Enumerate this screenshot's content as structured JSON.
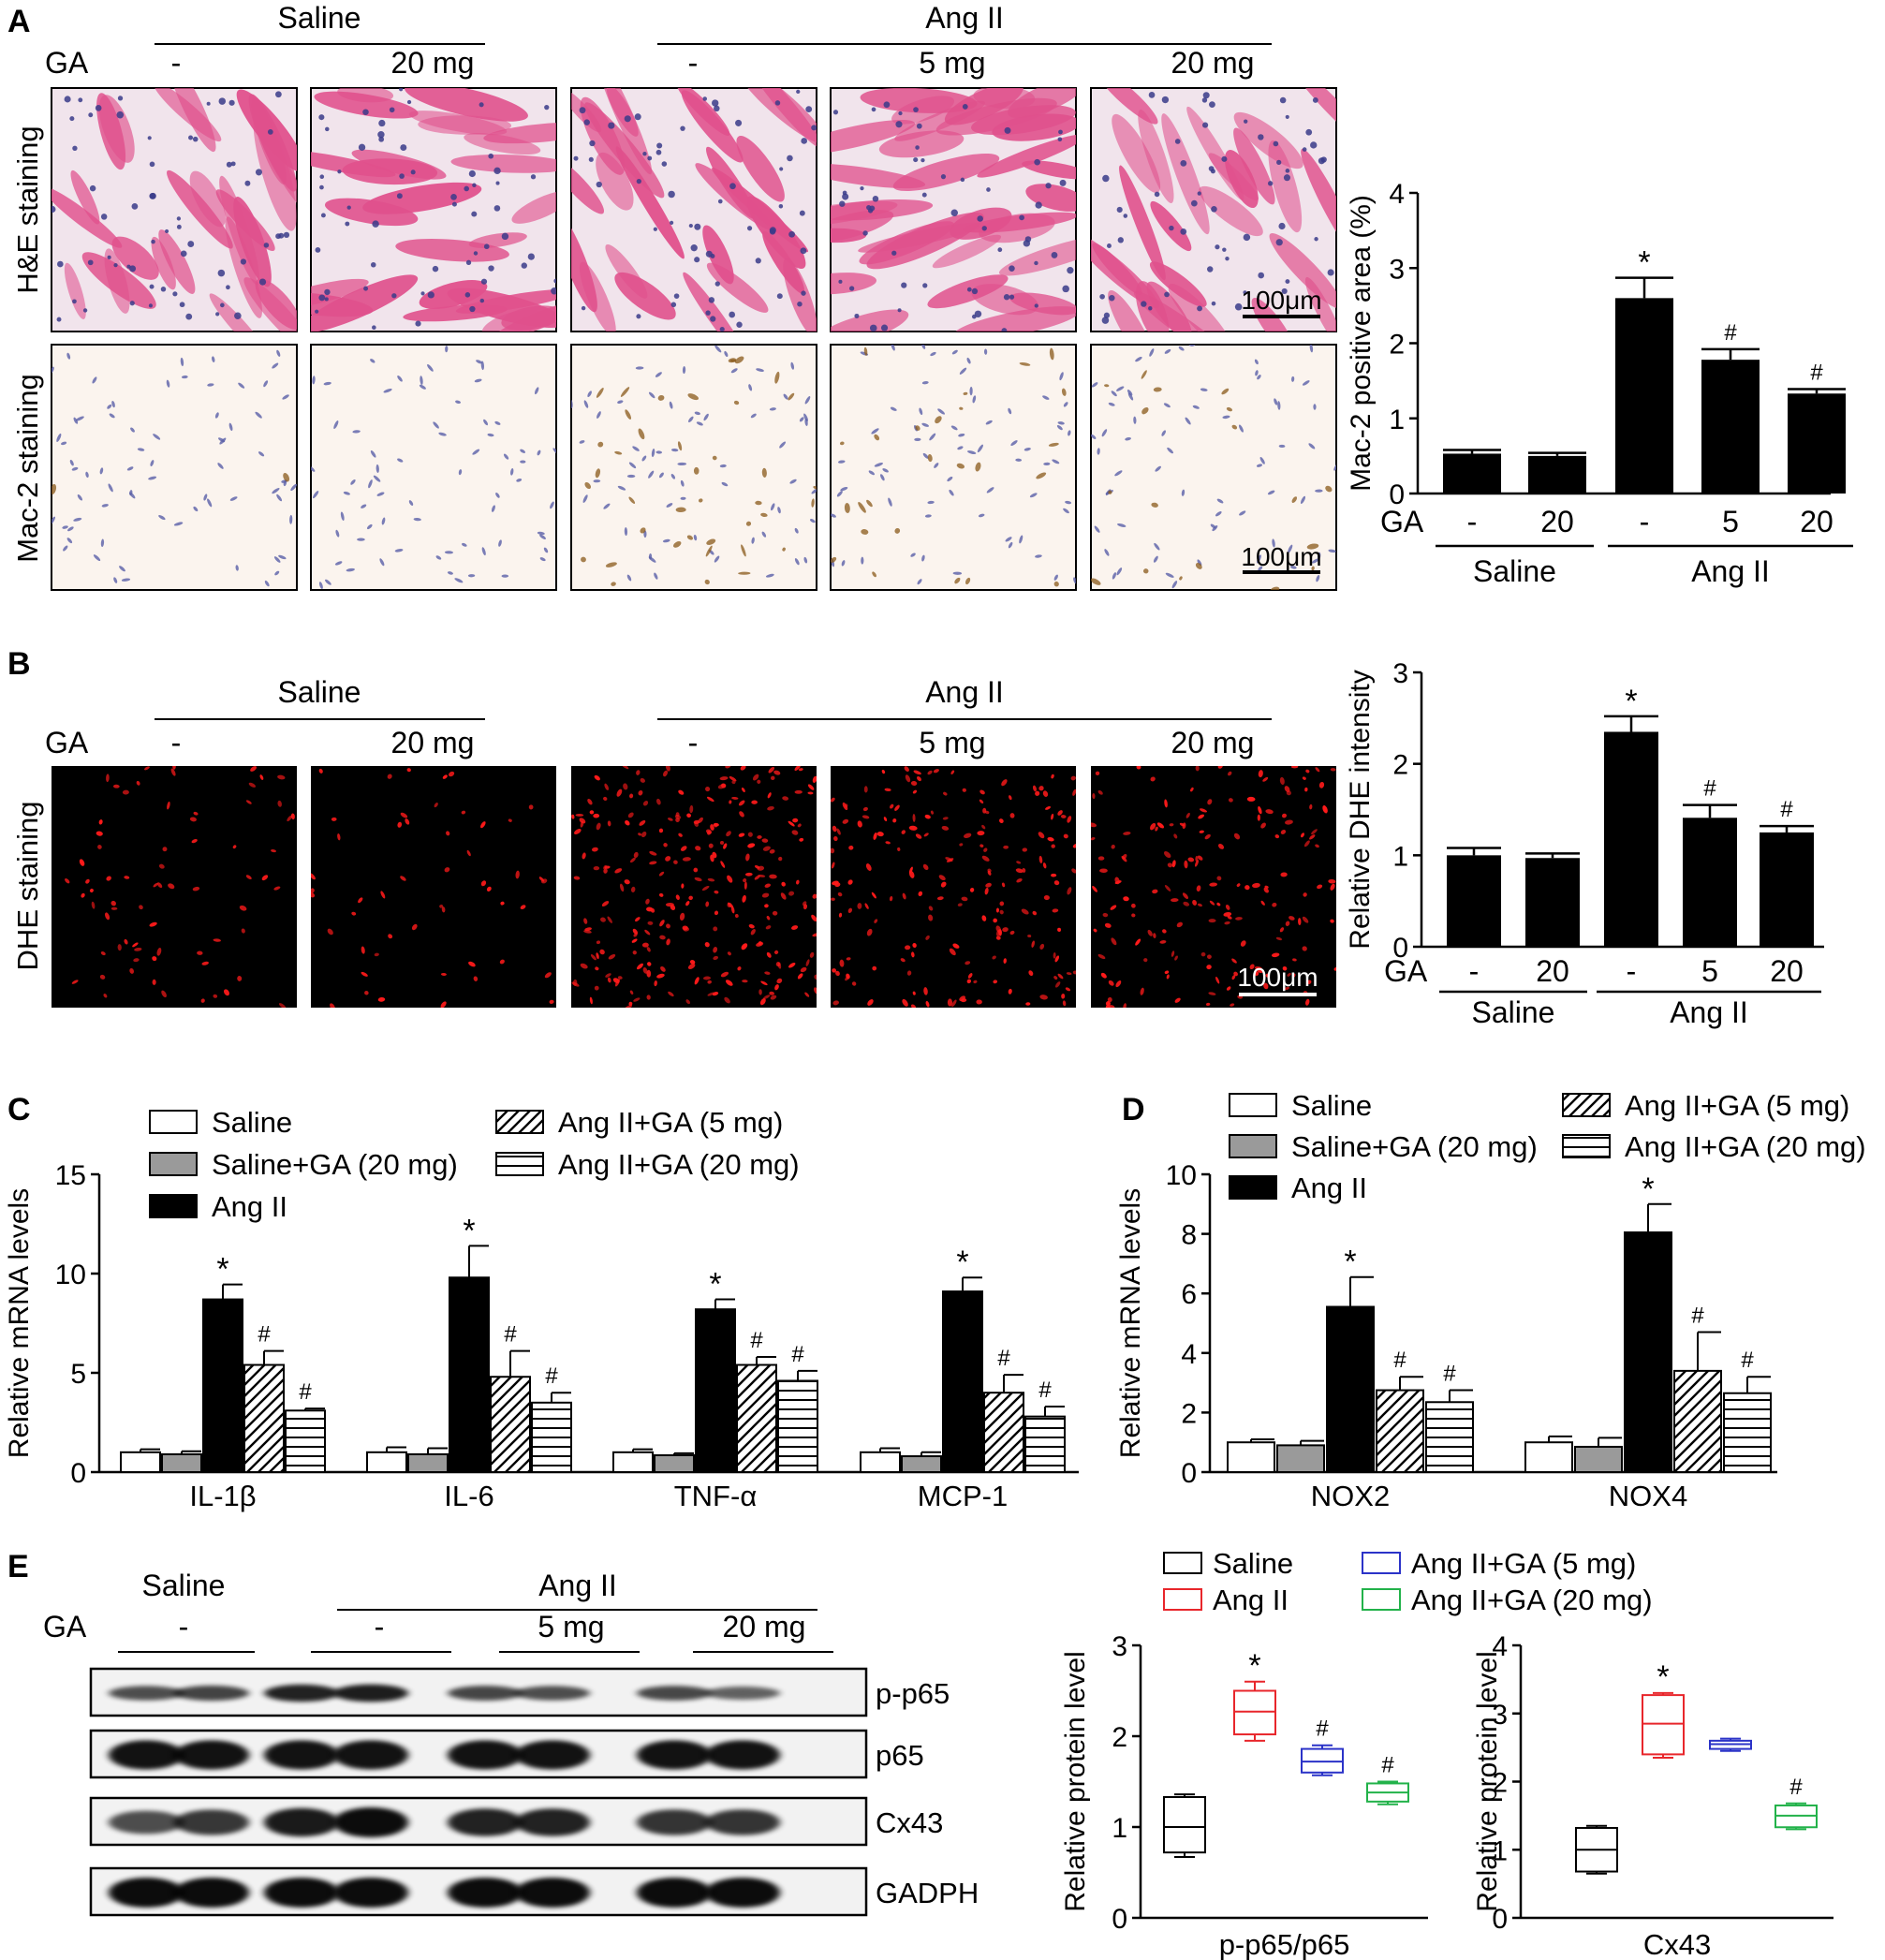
{
  "panel_labels": [
    "A",
    "B",
    "C",
    "D",
    "E"
  ],
  "groups": {
    "saline": "Saline",
    "angii": "Ang II",
    "ga": "GA"
  },
  "doses_micrograph": [
    "-",
    "20 mg",
    "-",
    "5 mg",
    "20 mg"
  ],
  "doses_bar": [
    "-",
    "20",
    "-",
    "5",
    "20"
  ],
  "scale_bar": "100μm",
  "panel_a": {
    "row_labels": [
      "H&E staining",
      "Mac-2 staining"
    ],
    "he_colors": {
      "background": "#f1e4ec",
      "muscle": "#e0508c",
      "nuclei": "#3a3b8a"
    },
    "mac_colors": {
      "background": "#fbf4ee",
      "nuclei": "#5a5fa8",
      "stain": "#8a5a1a"
    }
  },
  "panel_b": {
    "row_label": "DHE staining",
    "dhe_colors": {
      "background": "#000000",
      "signal": "#ff1a1a"
    }
  },
  "panel_c": {
    "legend": [
      "Saline",
      "Saline+GA (20 mg)",
      "Ang II",
      "Ang II+GA (5 mg)",
      "Ang II+GA (20 mg)"
    ]
  },
  "panel_e": {
    "header_doses": [
      "-",
      "-",
      "5 mg",
      "20 mg"
    ],
    "blot_labels": [
      "p-p65",
      "p65",
      "Cx43",
      "GADPH"
    ],
    "legend": [
      "Saline",
      "Ang II",
      "Ang II+GA (5 mg)",
      "Ang II+GA (20 mg)"
    ],
    "box_colors": [
      "#000000",
      "#e8262b",
      "#2b33c8",
      "#22b24a"
    ],
    "blot_intensity": {
      "p-p65": [
        0.55,
        0.62,
        0.85,
        0.88,
        0.6,
        0.55,
        0.58,
        0.42
      ],
      "p65": [
        0.95,
        0.95,
        0.95,
        0.95,
        0.95,
        0.95,
        0.95,
        0.95
      ],
      "Cx43": [
        0.55,
        0.7,
        0.9,
        1.0,
        0.85,
        0.85,
        0.72,
        0.72
      ],
      "GADPH": [
        1.0,
        1.0,
        1.0,
        1.0,
        1.0,
        1.0,
        1.0,
        1.0
      ]
    }
  },
  "chart_data": [
    {
      "id": "mac2",
      "type": "bar",
      "ylabel": "Mac-2 positive area (%)",
      "ylim": [
        0,
        4
      ],
      "yticks": [
        0,
        1,
        2,
        3,
        4
      ],
      "categories": [
        "-",
        "20",
        "-",
        "5",
        "20"
      ],
      "values": [
        0.53,
        0.5,
        2.6,
        1.78,
        1.33
      ],
      "errors": [
        0.05,
        0.04,
        0.27,
        0.14,
        0.06
      ],
      "marks": [
        "",
        "",
        "*",
        "#",
        "#"
      ],
      "groups": [
        {
          "label": "Saline",
          "from": 0,
          "to": 1
        },
        {
          "label": "Ang II",
          "from": 2,
          "to": 4
        }
      ],
      "row_label": "GA"
    },
    {
      "id": "dhe",
      "type": "bar",
      "ylabel": "Relative DHE intensity",
      "ylim": [
        0,
        3
      ],
      "yticks": [
        0,
        1,
        2,
        3
      ],
      "categories": [
        "-",
        "20",
        "-",
        "5",
        "20"
      ],
      "values": [
        1.0,
        0.97,
        2.35,
        1.41,
        1.25
      ],
      "errors": [
        0.08,
        0.05,
        0.17,
        0.14,
        0.07
      ],
      "marks": [
        "",
        "",
        "*",
        "#",
        "#"
      ],
      "groups": [
        {
          "label": "Saline",
          "from": 0,
          "to": 1
        },
        {
          "label": "Ang II",
          "from": 2,
          "to": 4
        }
      ],
      "row_label": "GA"
    },
    {
      "id": "cytokines",
      "type": "bar",
      "ylabel": "Relative mRNA levels",
      "ylim": [
        0,
        15
      ],
      "yticks": [
        0,
        5,
        10,
        15
      ],
      "categories": [
        "IL-1β",
        "IL-6",
        "TNF-α",
        "MCP-1"
      ],
      "series": [
        {
          "name": "Saline",
          "values": [
            1.0,
            1.0,
            1.0,
            1.0
          ],
          "errors": [
            0.15,
            0.25,
            0.15,
            0.2
          ],
          "marks": [
            "",
            "",
            "",
            ""
          ]
        },
        {
          "name": "Saline+GA (20 mg)",
          "values": [
            0.9,
            0.9,
            0.85,
            0.8
          ],
          "errors": [
            0.15,
            0.3,
            0.1,
            0.2
          ],
          "marks": [
            "",
            "",
            "",
            ""
          ]
        },
        {
          "name": "Ang II",
          "values": [
            8.7,
            9.8,
            8.2,
            9.1
          ],
          "errors": [
            0.75,
            1.6,
            0.5,
            0.7
          ],
          "marks": [
            "*",
            "*",
            "*",
            "*"
          ]
        },
        {
          "name": "Ang II+GA (5 mg)",
          "values": [
            5.4,
            4.8,
            5.4,
            4.0
          ],
          "errors": [
            0.7,
            1.3,
            0.4,
            0.9
          ],
          "marks": [
            "#",
            "#",
            "#",
            "#"
          ]
        },
        {
          "name": "Ang II+GA (20 mg)",
          "values": [
            3.1,
            3.5,
            4.6,
            2.8
          ],
          "errors": [
            0.1,
            0.5,
            0.5,
            0.5
          ],
          "marks": [
            "#",
            "#",
            "#",
            "#"
          ]
        }
      ]
    },
    {
      "id": "nox",
      "type": "bar",
      "ylabel": "Relative mRNA levels",
      "ylim": [
        0,
        10
      ],
      "yticks": [
        0,
        2,
        4,
        6,
        8,
        10
      ],
      "categories": [
        "NOX2",
        "NOX4"
      ],
      "series": [
        {
          "name": "Saline",
          "values": [
            1.0,
            1.0
          ],
          "errors": [
            0.1,
            0.2
          ],
          "marks": [
            "",
            ""
          ]
        },
        {
          "name": "Saline+GA (20 mg)",
          "values": [
            0.9,
            0.85
          ],
          "errors": [
            0.15,
            0.3
          ],
          "marks": [
            "",
            ""
          ]
        },
        {
          "name": "Ang II",
          "values": [
            5.55,
            8.05
          ],
          "errors": [
            1.0,
            0.95
          ],
          "marks": [
            "*",
            "*"
          ]
        },
        {
          "name": "Ang II+GA (5 mg)",
          "values": [
            2.75,
            3.4
          ],
          "errors": [
            0.45,
            1.3
          ],
          "marks": [
            "#",
            "#"
          ]
        },
        {
          "name": "Ang II+GA (20 mg)",
          "values": [
            2.35,
            2.65
          ],
          "errors": [
            0.4,
            0.55
          ],
          "marks": [
            "#",
            "#"
          ]
        }
      ]
    },
    {
      "id": "pp65",
      "type": "box",
      "xlabel": "p-p65/p65",
      "ylabel": "Relative protein level",
      "ylim": [
        0,
        3
      ],
      "yticks": [
        0,
        1,
        2,
        3
      ],
      "boxes": [
        {
          "name": "Saline",
          "min": 0.67,
          "q1": 0.72,
          "median": 1.0,
          "q3": 1.33,
          "max": 1.36,
          "mark": ""
        },
        {
          "name": "Ang II",
          "min": 1.95,
          "q1": 2.02,
          "median": 2.27,
          "q3": 2.5,
          "max": 2.6,
          "mark": "*"
        },
        {
          "name": "Ang II+GA (5 mg)",
          "min": 1.57,
          "q1": 1.6,
          "median": 1.72,
          "q3": 1.86,
          "max": 1.9,
          "mark": "#"
        },
        {
          "name": "Ang II+GA (20 mg)",
          "min": 1.25,
          "q1": 1.28,
          "median": 1.38,
          "q3": 1.48,
          "max": 1.5,
          "mark": "#"
        }
      ]
    },
    {
      "id": "cx43",
      "type": "box",
      "xlabel": "Cx43",
      "ylabel": "Relative protein level",
      "ylim": [
        0,
        4
      ],
      "yticks": [
        0,
        1,
        2,
        3,
        4
      ],
      "boxes": [
        {
          "name": "Saline",
          "min": 0.65,
          "q1": 0.68,
          "median": 1.0,
          "q3": 1.32,
          "max": 1.35,
          "mark": ""
        },
        {
          "name": "Ang II",
          "min": 2.35,
          "q1": 2.4,
          "median": 2.85,
          "q3": 3.27,
          "max": 3.3,
          "mark": "*"
        },
        {
          "name": "Ang II+GA (5 mg)",
          "min": 2.45,
          "q1": 2.48,
          "median": 2.55,
          "q3": 2.6,
          "max": 2.63,
          "mark": ""
        },
        {
          "name": "Ang II+GA (20 mg)",
          "min": 1.3,
          "q1": 1.33,
          "median": 1.5,
          "q3": 1.65,
          "max": 1.68,
          "mark": "#"
        }
      ]
    }
  ]
}
